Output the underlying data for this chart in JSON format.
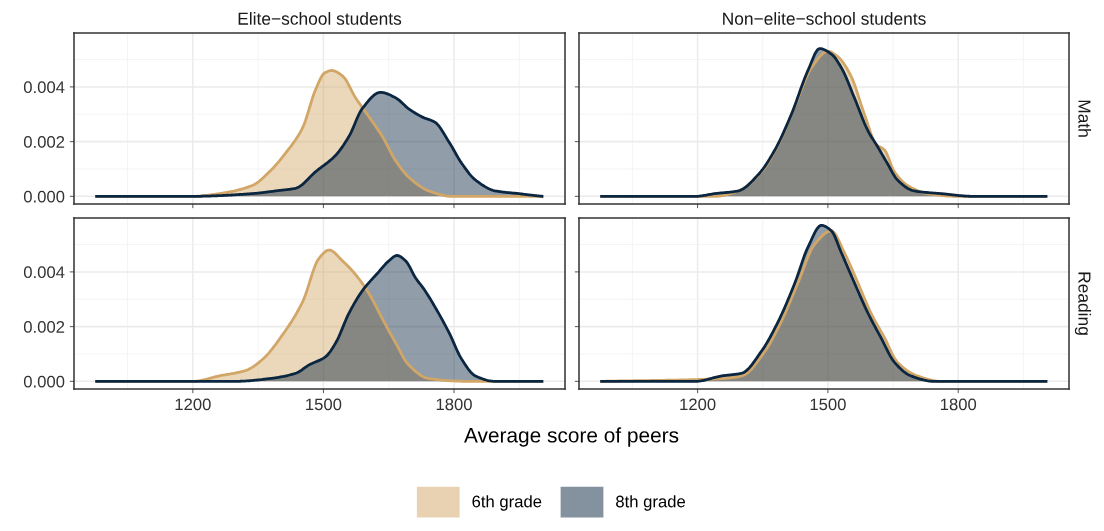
{
  "chart_data": [
    {
      "type": "area",
      "title": "Elite−school students",
      "tick_labels": "y",
      "grid": true,
      "xlim": [
        927,
        2055
      ],
      "ylim": [
        -0.00028,
        0.00597
      ],
      "xticks": [
        {
          "value": 1200,
          "label": null
        },
        {
          "value": 1500,
          "label": null
        },
        {
          "value": 1800,
          "label": null
        }
      ],
      "yticks": [
        {
          "value": 0,
          "label": "0.000"
        },
        {
          "value": 0.002,
          "label": "0.002"
        },
        {
          "value": 0.004,
          "label": "0.004"
        }
      ],
      "series": [
        {
          "color": "#d2a667",
          "x": [
            979,
            1200,
            1261,
            1337,
            1376,
            1414,
            1452,
            1482,
            1502,
            1519,
            1544,
            1574,
            1605,
            1635,
            1666,
            1696,
            1742,
            1795,
            1872,
            2002
          ],
          "values": [
            0,
            0,
            0.0001,
            0.0004,
            0.0009,
            0.0016,
            0.0025,
            0.0039,
            0.0045,
            0.0046,
            0.0044,
            0.0036,
            0.0029,
            0.0022,
            0.0013,
            0.0007,
            0.0002,
            0,
            0,
            0
          ]
        },
        {
          "color": "#0b2640",
          "x": [
            979,
            1200,
            1337,
            1391,
            1437,
            1482,
            1528,
            1559,
            1589,
            1631,
            1666,
            1696,
            1727,
            1757,
            1788,
            1818,
            1849,
            1895,
            1948,
            2002
          ],
          "values": [
            0,
            0,
            0.0001,
            0.0002,
            0.0003,
            0.0009,
            0.0015,
            0.0022,
            0.0032,
            0.0038,
            0.0036,
            0.0032,
            0.0029,
            0.0027,
            0.002,
            0.0012,
            0.0006,
            0.0002,
            0.0001,
            0
          ]
        }
      ]
    },
    {
      "type": "area",
      "title": "Non−elite−school students",
      "y2label": "Math",
      "tick_labels": false,
      "grid": true,
      "xlim": [
        927,
        2055
      ],
      "ylim": [
        -0.00028,
        0.00597
      ],
      "xticks": [
        {
          "value": 1200,
          "label": null
        },
        {
          "value": 1500,
          "label": null
        },
        {
          "value": 1800,
          "label": null
        }
      ],
      "yticks": [
        {
          "value": 0,
          "label": null
        },
        {
          "value": 0.002,
          "label": null
        },
        {
          "value": 0.004,
          "label": null
        }
      ],
      "series": [
        {
          "color": "#d2a667",
          "x": [
            979,
            1240,
            1294,
            1347,
            1386,
            1424,
            1462,
            1500,
            1523,
            1553,
            1584,
            1611,
            1630,
            1653,
            1683,
            1729,
            1798,
            2002
          ],
          "values": [
            0,
            0,
            0.0002,
            0.0009,
            0.0019,
            0.0033,
            0.0047,
            0.0053,
            0.0051,
            0.0044,
            0.003,
            0.0019,
            0.0017,
            0.0009,
            0.0004,
            0.0001,
            0,
            0
          ]
        },
        {
          "color": "#0b2640",
          "x": [
            979,
            1195,
            1240,
            1294,
            1340,
            1378,
            1416,
            1454,
            1481,
            1508,
            1531,
            1561,
            1592,
            1615,
            1637,
            1660,
            1698,
            1760,
            1836,
            2002
          ],
          "values": [
            0,
            0,
            0.0001,
            0.0002,
            0.0008,
            0.0017,
            0.003,
            0.0046,
            0.0054,
            0.0052,
            0.0047,
            0.0036,
            0.0024,
            0.0018,
            0.0012,
            0.0006,
            0.0002,
            0.0001,
            0,
            0
          ]
        }
      ]
    },
    {
      "type": "area",
      "grid": true,
      "xlim": [
        927,
        2055
      ],
      "ylim": [
        -0.00028,
        0.00597
      ],
      "xticks": [
        1200,
        1500,
        1800
      ],
      "yticks": [
        {
          "value": 0,
          "label": "0.000"
        },
        {
          "value": 0.002,
          "label": "0.002"
        },
        {
          "value": 0.004,
          "label": "0.004"
        }
      ],
      "xlabel": "Average score of peers",
      "series": [
        {
          "color": "#d2a667",
          "x": [
            979,
            1200,
            1261,
            1322,
            1360,
            1406,
            1452,
            1490,
            1513,
            1544,
            1574,
            1605,
            1635,
            1666,
            1696,
            1742,
            1834,
            2002
          ],
          "values": [
            0,
            0,
            0.0002,
            0.0004,
            0.0008,
            0.0017,
            0.0029,
            0.0045,
            0.0048,
            0.0044,
            0.0039,
            0.0032,
            0.0023,
            0.0014,
            0.0006,
            0.0001,
            0,
            0
          ]
        },
        {
          "color": "#0b2640",
          "x": [
            979,
            1299,
            1376,
            1437,
            1467,
            1505,
            1528,
            1559,
            1589,
            1627,
            1650,
            1669,
            1689,
            1711,
            1734,
            1757,
            1788,
            1818,
            1849,
            1895,
            2002
          ],
          "values": [
            0,
            0,
            0.0001,
            0.0003,
            0.0006,
            0.0009,
            0.0014,
            0.0025,
            0.0033,
            0.004,
            0.0044,
            0.0046,
            0.0044,
            0.0038,
            0.0033,
            0.0027,
            0.0018,
            0.0008,
            0.0002,
            0,
            0
          ]
        }
      ]
    },
    {
      "type": "area",
      "y2label": "Reading",
      "tick_labels": "x",
      "grid": true,
      "legend": "bottom",
      "xlim": [
        927,
        2055
      ],
      "ylim": [
        -0.00028,
        0.00597
      ],
      "xticks": [
        1200,
        1500,
        1800
      ],
      "yticks": [
        {
          "value": 0,
          "label": null
        },
        {
          "value": 0.002,
          "label": null
        },
        {
          "value": 0.004,
          "label": null
        }
      ],
      "series": [
        {
          "name": "6th grade",
          "color": "#d2a667",
          "x": [
            979,
            1256,
            1302,
            1355,
            1393,
            1431,
            1469,
            1508,
            1538,
            1569,
            1599,
            1630,
            1660,
            1706,
            1760,
            2002
          ],
          "values": [
            0,
            0.0001,
            0.0002,
            0.0011,
            0.0022,
            0.0036,
            0.005,
            0.0055,
            0.0047,
            0.0036,
            0.0025,
            0.0016,
            0.0007,
            0.0002,
            0,
            0
          ]
        },
        {
          "name": "8th grade",
          "color": "#0b2640",
          "x": [
            979,
            1195,
            1256,
            1302,
            1347,
            1386,
            1424,
            1454,
            1485,
            1508,
            1531,
            1561,
            1592,
            1622,
            1653,
            1691,
            1744,
            2002
          ],
          "values": [
            0,
            0,
            0.0002,
            0.0003,
            0.0011,
            0.0022,
            0.0036,
            0.0049,
            0.0057,
            0.0055,
            0.0047,
            0.0036,
            0.0025,
            0.0016,
            0.0007,
            0.0002,
            0,
            0
          ]
        }
      ]
    }
  ]
}
